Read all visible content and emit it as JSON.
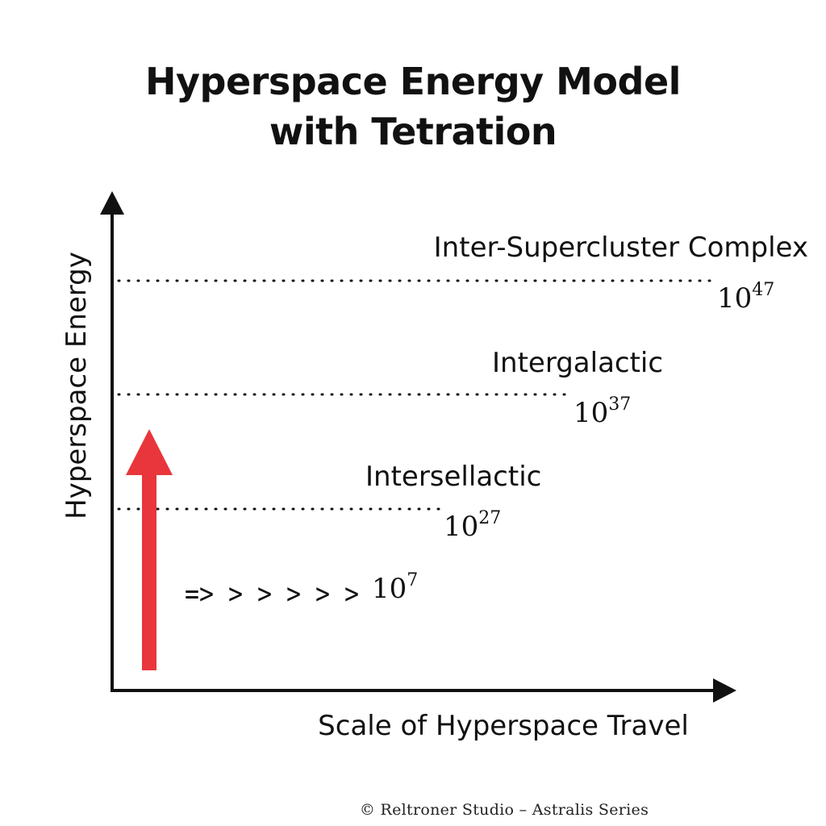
{
  "title": {
    "line1": "Hyperspace Energy Model",
    "line2": "with Tetration"
  },
  "axes": {
    "y_label": "Hyperspace Energy",
    "x_label": "Scale of Hyperspace Travel"
  },
  "levels": [
    {
      "label": "Inter-Supercluster Complex",
      "base": "10",
      "exponent": "47"
    },
    {
      "label": "Intergalactic",
      "base": "10",
      "exponent": "37"
    },
    {
      "label": "Intersellactic",
      "base": "10",
      "exponent": "27"
    }
  ],
  "start": {
    "chevrons": "=> > > > > >",
    "base": "10",
    "exponent": "7"
  },
  "arrow_color": "#e8363c",
  "copyright": "© Reltroner Studio – Astralis Series"
}
